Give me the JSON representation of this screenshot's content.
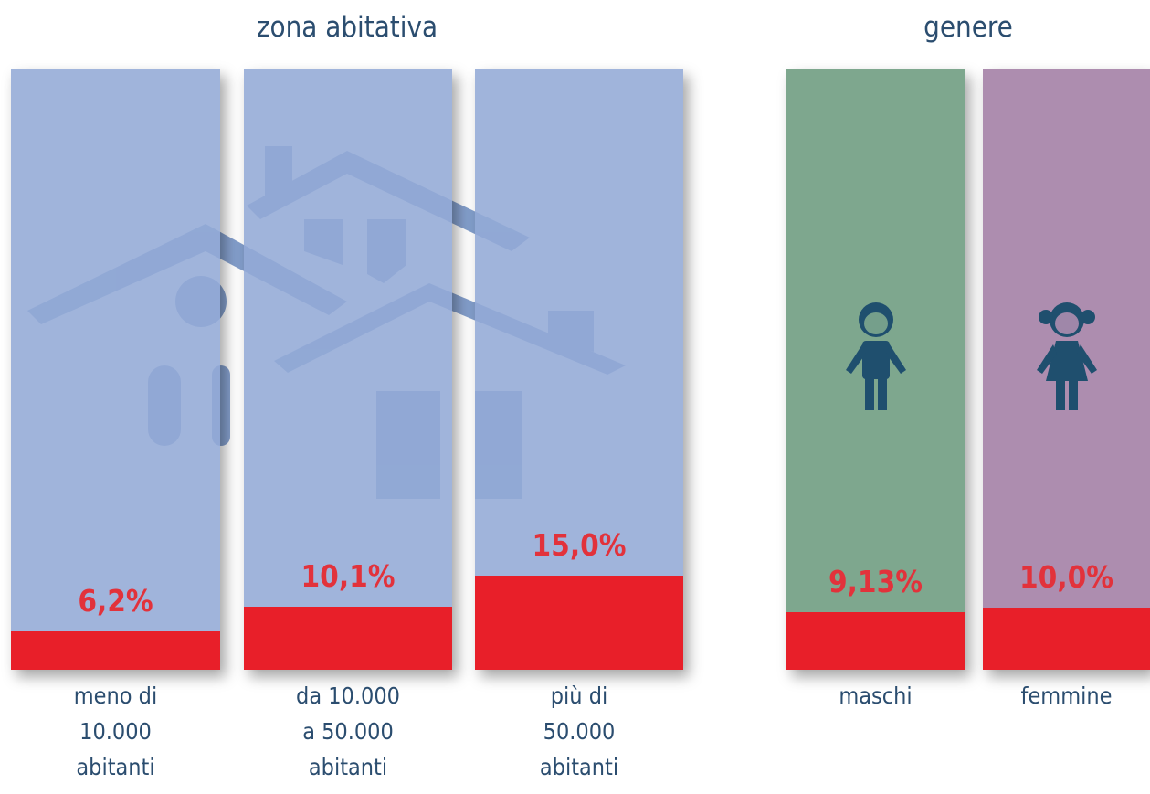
{
  "chart_data": [
    {
      "type": "bar",
      "title": "zona abitativa",
      "categories": [
        "meno di\n10.000\nabitanti",
        "da 10.000\na 50.000\nabitanti",
        "più di\n50.000\nabitanti"
      ],
      "values": [
        6.2,
        10.1,
        15.0
      ],
      "value_labels": [
        "6,2%",
        "10,1%",
        "15,0%"
      ],
      "colors": [
        "#93aad6",
        "#93aad6",
        "#93aad6"
      ],
      "bar_color": "#e81f29"
    },
    {
      "type": "bar",
      "title": "genere",
      "categories": [
        "maschi",
        "femmine"
      ],
      "values": [
        9.13,
        10.0
      ],
      "value_labels": [
        "9,13%",
        "10,0%"
      ],
      "colors": [
        "#7ea78e",
        "#ad8daf"
      ],
      "bar_color": "#e81f29"
    }
  ]
}
